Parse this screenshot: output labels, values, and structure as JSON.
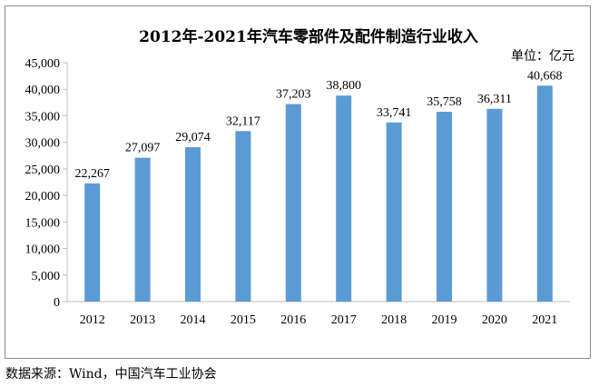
{
  "chart_data": {
    "type": "bar",
    "title": "2012年-2021年汽车零部件及配件制造行业收入",
    "unit_label": "单位：亿元",
    "categories": [
      "2012",
      "2013",
      "2014",
      "2015",
      "2016",
      "2017",
      "2018",
      "2019",
      "2020",
      "2021"
    ],
    "values": [
      22267,
      27097,
      29074,
      32117,
      37203,
      38800,
      33741,
      35758,
      36311,
      40668
    ],
    "value_labels": [
      "22,267",
      "27,097",
      "29,074",
      "32,117",
      "37,203",
      "38,800",
      "33,741",
      "35,758",
      "36,311",
      "40,668"
    ],
    "ylim": [
      0,
      45000
    ],
    "y_ticks": [
      0,
      5000,
      10000,
      15000,
      20000,
      25000,
      30000,
      35000,
      40000,
      45000
    ],
    "y_tick_labels": [
      "0",
      "5,000",
      "10,000",
      "15,000",
      "20,000",
      "25,000",
      "30,000",
      "35,000",
      "40,000",
      "45,000"
    ],
    "grid": false,
    "colors": {
      "bar": "#5b9bd5",
      "axis": "#bfbfbf",
      "border": "#8c8c8c"
    }
  },
  "footer": {
    "source": "数据来源：Wind，中国汽车工业协会"
  }
}
